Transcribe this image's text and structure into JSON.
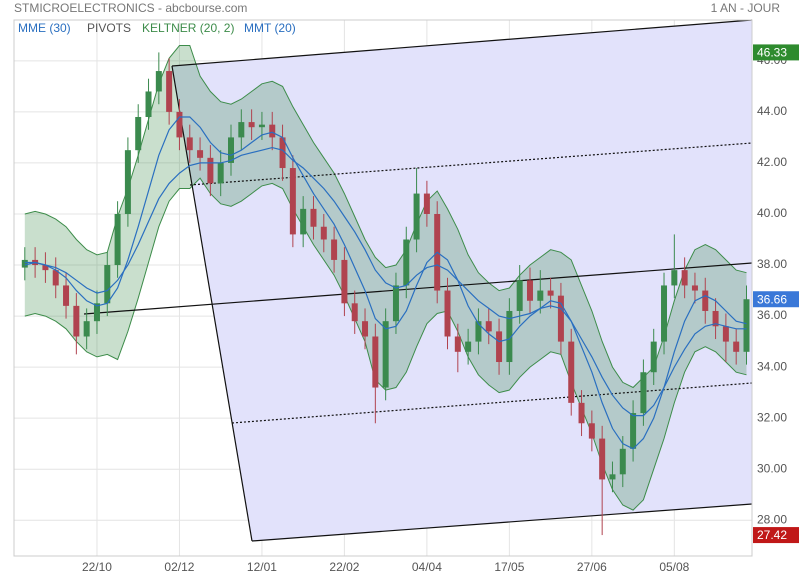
{
  "header": {
    "title": "STMICROELECTRONICS - abcbourse.com",
    "period": "1 AN - JOUR"
  },
  "chart_data": {
    "type": "candlestick",
    "categories": [
      null,
      null,
      null,
      null,
      null,
      null,
      null,
      "22/10",
      null,
      null,
      null,
      null,
      null,
      null,
      null,
      "02/12",
      null,
      null,
      null,
      null,
      null,
      null,
      null,
      "12/01",
      null,
      null,
      null,
      null,
      null,
      null,
      null,
      "22/02",
      null,
      null,
      null,
      null,
      null,
      null,
      null,
      "04/04",
      null,
      null,
      null,
      null,
      null,
      null,
      null,
      "17/05",
      null,
      null,
      null,
      null,
      null,
      null,
      null,
      "27/06",
      null,
      null,
      null,
      null,
      null,
      null,
      null,
      "05/08",
      null,
      null,
      null,
      null,
      null,
      null,
      null
    ],
    "open": [
      37.9,
      38.2,
      38.0,
      37.8,
      37.2,
      36.4,
      35.2,
      35.8,
      36.5,
      38.0,
      40.0,
      42.5,
      43.8,
      44.8,
      45.6,
      44.0,
      43.0,
      42.5,
      42.2,
      41.2,
      42.0,
      43.0,
      43.6,
      43.4,
      43.5,
      43.0,
      41.8,
      39.2,
      40.2,
      39.5,
      39.0,
      38.2,
      36.5,
      35.8,
      35.2,
      33.2,
      35.8,
      37.2,
      39.0,
      40.8,
      40.0,
      37.0,
      35.2,
      34.6,
      35.0,
      35.8,
      35.4,
      34.2,
      36.2,
      37.4,
      36.6,
      37.0,
      36.8,
      35.0,
      32.6,
      31.8,
      31.2,
      29.6,
      29.8,
      30.8,
      32.2,
      33.8,
      35.0,
      37.2,
      37.8,
      37.2,
      37.0,
      36.2,
      35.6,
      35.0,
      34.6
    ],
    "high": [
      38.7,
      38.7,
      38.5,
      38.3,
      37.7,
      36.9,
      36.3,
      37.0,
      38.5,
      40.5,
      43.0,
      44.3,
      45.3,
      46.33,
      46.1,
      44.5,
      43.5,
      43.0,
      42.7,
      42.5,
      43.5,
      44.1,
      44.1,
      44.0,
      44.0,
      43.5,
      42.3,
      40.7,
      40.7,
      40.0,
      39.5,
      38.7,
      37.0,
      36.3,
      35.7,
      36.3,
      37.7,
      39.5,
      41.8,
      41.3,
      40.5,
      37.5,
      35.7,
      35.5,
      36.3,
      36.3,
      35.9,
      36.7,
      38.0,
      37.9,
      37.8,
      37.5,
      37.3,
      35.5,
      33.1,
      32.3,
      31.7,
      30.3,
      31.3,
      32.7,
      34.3,
      35.5,
      37.7,
      39.2,
      38.3,
      37.7,
      37.5,
      36.7,
      36.1,
      35.5,
      37.2
    ],
    "low": [
      37.4,
      37.5,
      37.3,
      36.7,
      35.9,
      34.5,
      34.7,
      35.3,
      36.0,
      37.5,
      39.5,
      42.0,
      43.3,
      44.3,
      43.5,
      42.5,
      42.0,
      41.7,
      40.7,
      40.7,
      41.5,
      42.5,
      42.9,
      42.9,
      42.5,
      41.3,
      38.7,
      38.7,
      39.0,
      38.5,
      37.7,
      36.0,
      35.3,
      34.7,
      31.8,
      32.7,
      35.3,
      36.7,
      38.5,
      39.5,
      36.5,
      34.7,
      33.8,
      34.1,
      34.5,
      34.9,
      33.7,
      33.7,
      35.7,
      36.1,
      36.1,
      36.3,
      34.5,
      32.1,
      31.3,
      30.7,
      27.42,
      29.1,
      29.3,
      30.3,
      31.7,
      33.3,
      34.5,
      36.7,
      36.7,
      36.5,
      35.7,
      35.1,
      34.2,
      34.1,
      34.1
    ],
    "close": [
      38.2,
      38.0,
      37.8,
      37.2,
      36.4,
      35.2,
      35.8,
      36.5,
      38.0,
      40.0,
      42.5,
      43.8,
      44.8,
      45.6,
      44.0,
      43.0,
      42.5,
      42.2,
      41.2,
      42.0,
      43.0,
      43.6,
      43.4,
      43.5,
      43.0,
      41.8,
      39.2,
      40.2,
      39.5,
      39.0,
      38.2,
      36.5,
      35.8,
      35.2,
      33.2,
      35.8,
      37.2,
      39.0,
      40.8,
      40.0,
      37.0,
      35.2,
      34.6,
      35.0,
      35.8,
      35.4,
      34.2,
      36.2,
      37.4,
      36.6,
      37.0,
      36.8,
      35.0,
      32.6,
      31.8,
      31.2,
      29.6,
      29.8,
      30.8,
      32.2,
      33.8,
      35.0,
      37.2,
      37.8,
      37.2,
      37.0,
      36.2,
      35.6,
      35.0,
      34.6,
      36.66
    ],
    "up_color": "#3b8a4e",
    "down_color": "#b0434f",
    "ylim": [
      26.6,
      47.6
    ],
    "yticks": [
      {
        "value": 28,
        "label": "28.00"
      },
      {
        "value": 30,
        "label": "30.00"
      },
      {
        "value": 32,
        "label": "32.00"
      },
      {
        "value": 34,
        "label": "34.00"
      },
      {
        "value": 36,
        "label": "36.00"
      },
      {
        "value": 38,
        "label": "38.00"
      },
      {
        "value": 40,
        "label": "40.00"
      },
      {
        "value": 42,
        "label": "42.00"
      },
      {
        "value": 44,
        "label": "44.00"
      },
      {
        "value": 46,
        "label": "46.00"
      }
    ],
    "grid": true,
    "overlays": [
      {
        "name": "MME (30)",
        "color": "#2a6fc0",
        "values": [
          38.1,
          38.1,
          38.0,
          37.9,
          37.7,
          37.4,
          37.1,
          36.9,
          37.0,
          37.4,
          38.0,
          38.8,
          39.7,
          40.6,
          41.2,
          41.6,
          41.9,
          42.0,
          42.0,
          42.0,
          42.1,
          42.3,
          42.4,
          42.5,
          42.6,
          42.5,
          42.1,
          41.8,
          41.4,
          41.0,
          40.5,
          39.9,
          39.3,
          38.6,
          37.8,
          37.3,
          37.1,
          37.2,
          37.6,
          37.9,
          38.0,
          37.8,
          37.4,
          37.0,
          36.6,
          36.3,
          36.0,
          35.9,
          36.0,
          36.1,
          36.3,
          36.4,
          36.3,
          35.8,
          35.1,
          34.4,
          33.6,
          32.9,
          32.4,
          32.1,
          32.1,
          32.5,
          33.2,
          34.0,
          34.7,
          35.3,
          35.6,
          35.7,
          35.6,
          35.5,
          35.5
        ]
      },
      {
        "name": "MMT (20)",
        "color": "#2a6fc0",
        "values": [
          38.0,
          38.1,
          38.0,
          37.8,
          37.5,
          37.0,
          36.6,
          36.4,
          36.5,
          37.1,
          38.2,
          39.5,
          40.9,
          42.3,
          43.3,
          43.8,
          43.8,
          43.4,
          42.8,
          42.4,
          42.3,
          42.5,
          42.8,
          43.1,
          43.2,
          43.0,
          42.2,
          41.5,
          40.8,
          40.2,
          39.6,
          38.8,
          37.9,
          37.0,
          35.9,
          35.5,
          35.6,
          36.2,
          37.2,
          38.1,
          38.5,
          38.2,
          37.4,
          36.4,
          35.7,
          35.3,
          35.0,
          35.1,
          35.6,
          36.0,
          36.3,
          36.6,
          36.5,
          35.8,
          34.8,
          33.8,
          32.6,
          31.6,
          31.0,
          30.8,
          31.2,
          32.0,
          33.2,
          34.6,
          35.8,
          36.6,
          36.8,
          36.6,
          36.2,
          35.8,
          35.7
        ]
      }
    ],
    "keltner": {
      "name": "KELTNER (20, 2)",
      "color": "#3d8c4a",
      "upper": [
        40.0,
        40.1,
        40.0,
        39.8,
        39.5,
        39.0,
        38.6,
        38.4,
        38.5,
        39.9,
        41.0,
        42.3,
        43.7,
        45.1,
        46.1,
        46.6,
        46.6,
        45.4,
        44.8,
        44.4,
        44.3,
        44.5,
        44.8,
        45.1,
        45.2,
        45.0,
        44.2,
        43.5,
        42.8,
        42.2,
        41.6,
        40.8,
        39.9,
        39.0,
        38.3,
        37.9,
        38.0,
        38.6,
        39.6,
        40.5,
        40.9,
        40.2,
        39.4,
        38.4,
        37.7,
        37.3,
        37.0,
        37.1,
        37.6,
        38.0,
        38.3,
        38.6,
        38.5,
        38.2,
        37.2,
        36.2,
        35.0,
        34.0,
        33.4,
        33.2,
        33.6,
        34.0,
        35.2,
        36.6,
        37.8,
        38.6,
        38.8,
        38.6,
        38.2,
        37.8,
        37.7
      ],
      "lower": [
        36.0,
        36.1,
        36.0,
        35.8,
        35.5,
        35.0,
        34.6,
        34.4,
        34.5,
        34.3,
        35.4,
        36.7,
        38.1,
        39.5,
        40.5,
        41.0,
        41.0,
        41.4,
        40.8,
        40.4,
        40.3,
        40.5,
        40.8,
        41.1,
        41.2,
        41.0,
        40.2,
        39.5,
        38.8,
        38.2,
        37.6,
        36.8,
        35.9,
        35.0,
        33.5,
        33.1,
        33.2,
        33.8,
        34.8,
        35.7,
        36.1,
        36.2,
        35.4,
        34.4,
        33.7,
        33.3,
        33.0,
        33.1,
        33.6,
        34.0,
        34.3,
        34.6,
        34.5,
        33.4,
        32.4,
        31.4,
        30.2,
        29.2,
        28.6,
        28.4,
        28.8,
        30.0,
        31.2,
        32.6,
        33.8,
        34.6,
        34.8,
        34.6,
        34.2,
        33.8,
        33.7
      ]
    },
    "pivots": {
      "name": "PIVOTS",
      "color": "#555555"
    }
  }
}
